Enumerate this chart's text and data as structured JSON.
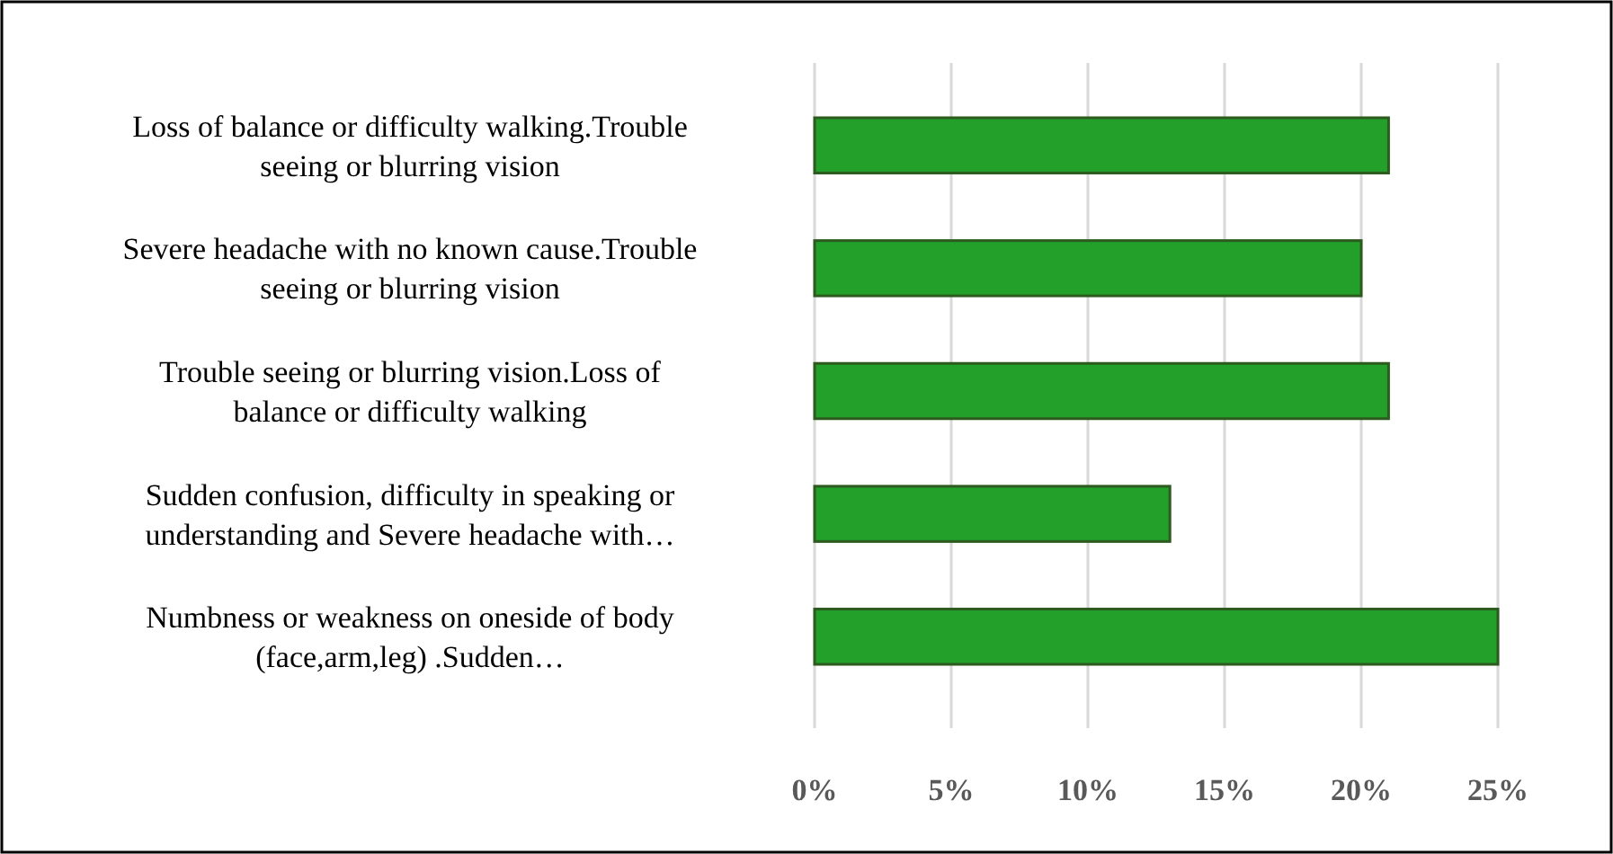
{
  "chart_data": {
    "type": "bar",
    "orientation": "horizontal",
    "categories": [
      "Loss of balance or difficulty walking.Trouble seeing or blurring vision",
      "Severe headache with no known cause.Trouble seeing or blurring vision",
      "Trouble seeing or blurring vision.Loss of balance or difficulty walking",
      "Sudden confusion, difficulty in speaking or understanding and Severe headache with…",
      "Numbness or weakness on oneside of body (face,arm,leg) .Sudden…"
    ],
    "values": [
      21,
      20,
      21,
      13,
      25
    ],
    "color": "#22a02a",
    "xlim": [
      0,
      25
    ],
    "xticks": [
      {
        "value": 0,
        "label": "0%"
      },
      {
        "value": 5,
        "label": "5%"
      },
      {
        "value": 10,
        "label": "10%"
      },
      {
        "value": 15,
        "label": "15%"
      },
      {
        "value": 20,
        "label": "20%"
      },
      {
        "value": 25,
        "label": "25%"
      }
    ],
    "grid": "x"
  }
}
